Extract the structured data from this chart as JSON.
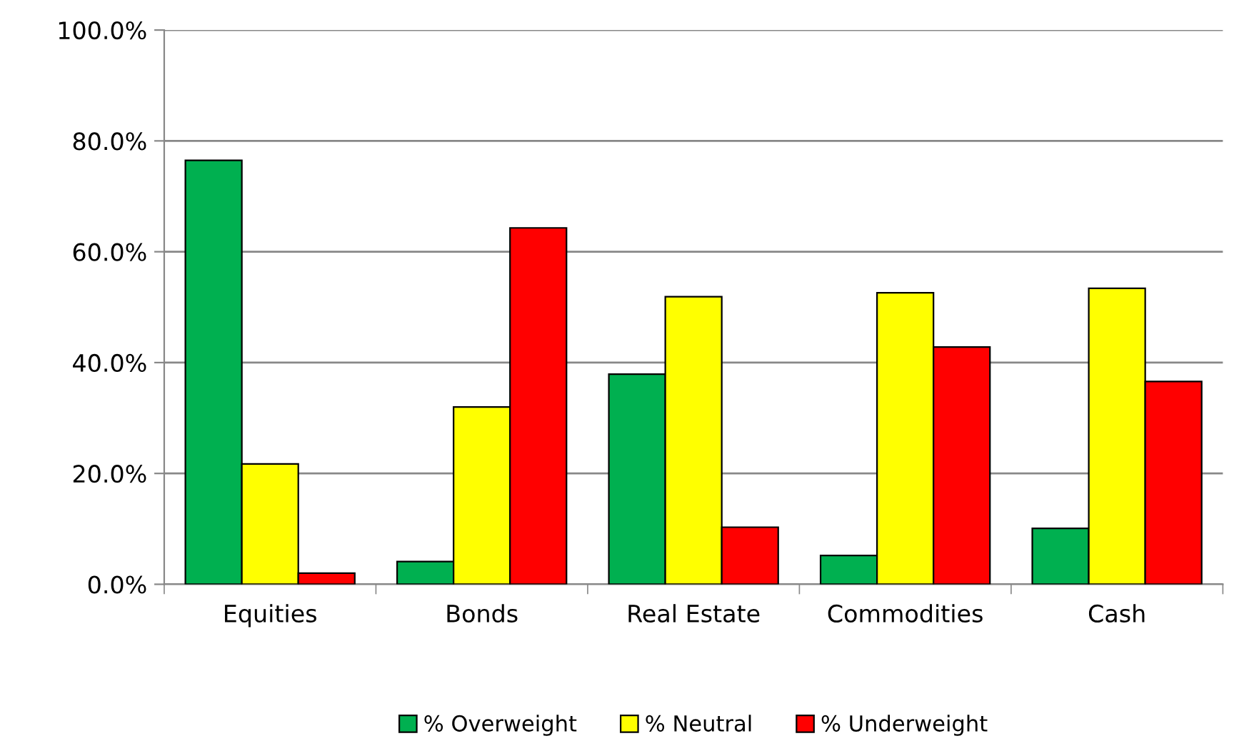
{
  "chart_data": {
    "type": "bar",
    "categories": [
      "Equities",
      "Bonds",
      "Real Estate",
      "Commodities",
      "Cash"
    ],
    "series": [
      {
        "name": "% Overweight",
        "color": "#00b050",
        "values": [
          76.5,
          4.1,
          37.9,
          5.2,
          10.1
        ]
      },
      {
        "name": "% Neutral",
        "color": "#ffff00",
        "values": [
          21.7,
          32.0,
          51.9,
          52.6,
          53.4
        ]
      },
      {
        "name": "% Underweight",
        "color": "#ff0000",
        "values": [
          2.0,
          64.3,
          10.3,
          42.8,
          36.6
        ]
      }
    ],
    "ylim": [
      0,
      100
    ],
    "yticks": [
      {
        "value": 0,
        "label": "0.0%"
      },
      {
        "value": 20,
        "label": "20.0%"
      },
      {
        "value": 40,
        "label": "40.0%"
      },
      {
        "value": 60,
        "label": "60.0%"
      },
      {
        "value": 80,
        "label": "80.0%"
      },
      {
        "value": 100,
        "label": "100.0%"
      }
    ],
    "grid": "y",
    "legend": "bottom"
  }
}
